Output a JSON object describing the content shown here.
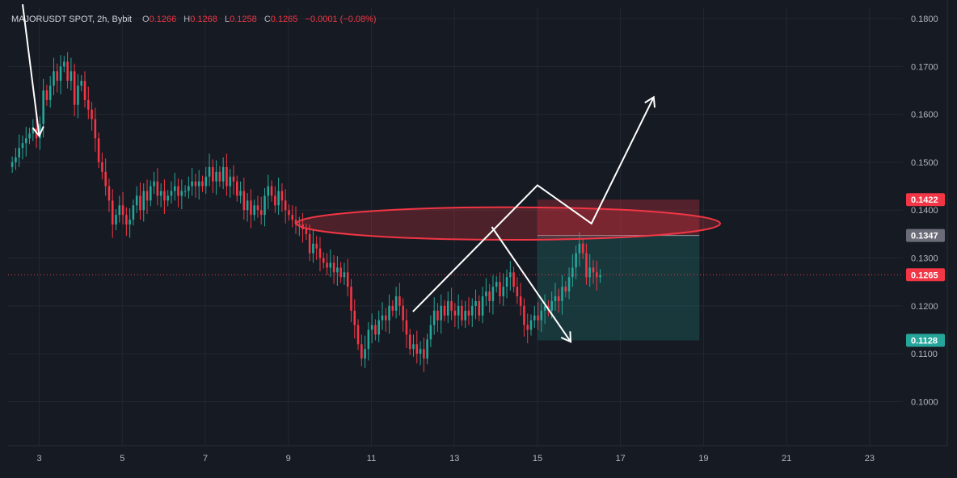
{
  "header": {
    "symbol": "MAJORUSDT SPOT, 2h, Bybit",
    "open_key": "O",
    "open": "0.1266",
    "high_key": "H",
    "high": "0.1268",
    "low_key": "L",
    "low": "0.1258",
    "close_key": "C",
    "close": "0.1265",
    "change": "−0.0001 (−0.08%)"
  },
  "colors": {
    "background": "#161a22",
    "up": "#26a69a",
    "down": "#f23645",
    "grid": "#232733",
    "stop_zone": "#f23645",
    "target_zone": "#26a69a",
    "arrows": "#ffffff",
    "ellipse": "#f23645"
  },
  "chart_data": {
    "type": "candlestick",
    "xlabel": "",
    "ylabel": "",
    "x_ticks": [
      "3",
      "5",
      "7",
      "9",
      "11",
      "13",
      "15",
      "17",
      "19",
      "21",
      "23"
    ],
    "x_tick_days": [
      3,
      5,
      7,
      9,
      11,
      13,
      15,
      17,
      19,
      21,
      23
    ],
    "xlim": [
      2.25,
      23.8
    ],
    "y_ticks": [
      "0.1800",
      "0.1700",
      "0.1600",
      "0.1500",
      "0.1400",
      "0.1300",
      "0.1200",
      "0.1100",
      "0.1000"
    ],
    "ylim": [
      0.0908,
      0.1822
    ],
    "grid": true,
    "price_badges": [
      {
        "label": "0.1422",
        "value": 0.1422,
        "color": "#f23645"
      },
      {
        "label": "0.1347",
        "value": 0.1347,
        "color": "#6a6d78"
      },
      {
        "label": "0.1265",
        "value": 0.1265,
        "color": "#f23645"
      },
      {
        "label": "0.1128",
        "value": 0.1128,
        "color": "#26a69a"
      }
    ],
    "current_price": 0.1265,
    "position": {
      "type": "short",
      "entry": 0.1347,
      "stop": 0.1422,
      "target": 0.1128,
      "start_day": 15.0,
      "end_day": 18.9
    },
    "resistance_zone": {
      "center_day": 14.3,
      "center_price": 0.1372,
      "half_width_days": 5.1,
      "half_height_price": 0.0034
    },
    "arrows": [
      {
        "points": [
          [
            2.6,
            0.183
          ],
          [
            3.0,
            0.1555
          ]
        ],
        "head": true
      },
      {
        "points": [
          [
            12.0,
            0.1188
          ],
          [
            15.0,
            0.1452
          ],
          [
            16.3,
            0.1372
          ],
          [
            17.8,
            0.1636
          ]
        ],
        "head": true
      },
      {
        "points": [
          [
            13.9,
            0.1365
          ],
          [
            15.8,
            0.1125
          ]
        ],
        "head": true
      }
    ],
    "series": [
      {
        "start_day": 2.35,
        "step_days": 0.0833,
        "closes": [
          0.15,
          0.151,
          0.153,
          0.154,
          0.155,
          0.156,
          0.157,
          0.155,
          0.158,
          0.165,
          0.163,
          0.166,
          0.169,
          0.167,
          0.17,
          0.171,
          0.167,
          0.169,
          0.162,
          0.166,
          0.167,
          0.163,
          0.161,
          0.159,
          0.155,
          0.15,
          0.148,
          0.145,
          0.142,
          0.137,
          0.139,
          0.141,
          0.139,
          0.137,
          0.138,
          0.141,
          0.143,
          0.14,
          0.144,
          0.142,
          0.145,
          0.146,
          0.143,
          0.144,
          0.142,
          0.143,
          0.144,
          0.145,
          0.143,
          0.144,
          0.144,
          0.145,
          0.146,
          0.145,
          0.146,
          0.145,
          0.147,
          0.149,
          0.146,
          0.148,
          0.146,
          0.149,
          0.145,
          0.147,
          0.146,
          0.143,
          0.144,
          0.14,
          0.142,
          0.139,
          0.141,
          0.14,
          0.139,
          0.143,
          0.145,
          0.143,
          0.141,
          0.144,
          0.142,
          0.14,
          0.139,
          0.138,
          0.137,
          0.137,
          0.136,
          0.135,
          0.131,
          0.133,
          0.132,
          0.13,
          0.129,
          0.128,
          0.129,
          0.127,
          0.128,
          0.126,
          0.127,
          0.124,
          0.119,
          0.116,
          0.112,
          0.109,
          0.111,
          0.115,
          0.116,
          0.114,
          0.117,
          0.118,
          0.117,
          0.12,
          0.119,
          0.122,
          0.12,
          0.117,
          0.114,
          0.111,
          0.112,
          0.11,
          0.111,
          0.109,
          0.113,
          0.116,
          0.119,
          0.117,
          0.12,
          0.118,
          0.121,
          0.119,
          0.118,
          0.12,
          0.117,
          0.119,
          0.118,
          0.12,
          0.121,
          0.118,
          0.122,
          0.123,
          0.121,
          0.124,
          0.125,
          0.122,
          0.124,
          0.126,
          0.127,
          0.124,
          0.122,
          0.12,
          0.116,
          0.115,
          0.117,
          0.118,
          0.117,
          0.119,
          0.12,
          0.119,
          0.121,
          0.122,
          0.121,
          0.124,
          0.123,
          0.126,
          0.128,
          0.131,
          0.133,
          0.131,
          0.126,
          0.128,
          0.127,
          0.126,
          0.1265
        ]
      }
    ]
  }
}
